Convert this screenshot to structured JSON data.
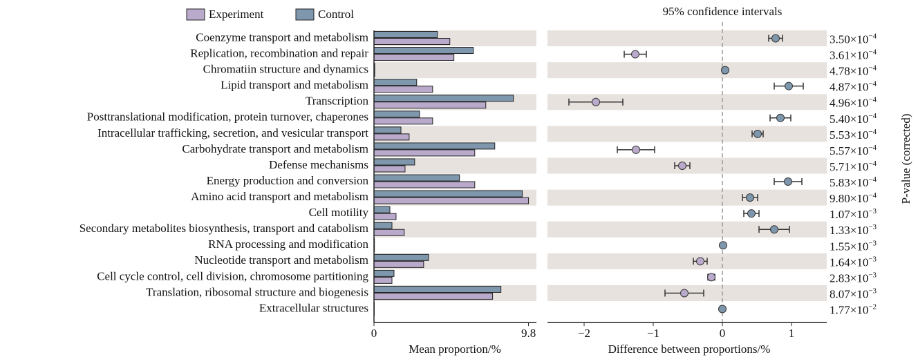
{
  "chart_data": [
    {
      "type": "bar",
      "orientation": "horizontal",
      "categories": [
        "Coenzyme transport and metabolism",
        "Replication, recombination and repair",
        "Chromatiin structure and dynamics",
        "Lipid transport and metabolism",
        "Transcription",
        "Posttranslational modification, protein turnover, chaperones",
        "Intracellular trafficking, secretion, and vesicular transport",
        "Carbohydrate transport and metabolism",
        "Defense mechanisms",
        "Energy production and conversion",
        "Amino acid transport and metabolism",
        "Cell motility",
        "Secondary metabolites biosynthesis, transport and catabolism",
        "RNA processing and modification",
        "Nucleotide transport and metabolism",
        "Cell cycle control, cell division, chromosome partitioning",
        "Translation, ribosomal structure and biogenesis",
        "Extracellular structures"
      ],
      "series": [
        {
          "name": "Experiment",
          "color": "#b9aacb",
          "values": [
            4.81,
            5.07,
            0.05,
            3.72,
            7.09,
            3.72,
            2.23,
            6.39,
            1.97,
            6.39,
            9.8,
            1.4,
            1.92,
            0.03,
            3.15,
            1.14,
            7.52,
            0.02
          ]
        },
        {
          "name": "Control",
          "color": "#7f97ad",
          "values": [
            4.02,
            6.3,
            0.05,
            2.71,
            8.84,
            2.89,
            1.71,
            7.66,
            2.58,
            5.42,
            9.4,
            1.01,
            1.14,
            0.03,
            3.46,
            1.27,
            8.05,
            0.02
          ]
        }
      ],
      "xlim": [
        0,
        10.3
      ],
      "xticks": [
        0,
        9.8
      ],
      "xlabel": "Mean proportion/%",
      "stripe_color": "#e7e2dd"
    },
    {
      "type": "errorbar",
      "title": "95% confidence intervals",
      "values": [
        0.77,
        -1.26,
        0.04,
        0.96,
        -1.83,
        0.84,
        0.51,
        -1.25,
        -0.58,
        0.95,
        0.4,
        0.42,
        0.75,
        0.01,
        -0.32,
        -0.16,
        -0.55,
        0.0
      ],
      "errors": [
        0.1,
        0.16,
        0,
        0.21,
        0.39,
        0.15,
        0.08,
        0.27,
        0.11,
        0.2,
        0.11,
        0.11,
        0.22,
        0,
        0.1,
        0.05,
        0.28,
        0
      ],
      "xlim": [
        -2.53,
        1.51
      ],
      "xticks": [
        {
          "value": -2,
          "label": "−2"
        },
        {
          "value": -1,
          "label": "−1"
        },
        0,
        1
      ],
      "xlabel": "Difference between proportions/%",
      "p_values": [
        0.00035,
        0.000361,
        0.000478,
        0.000487,
        0.000496,
        0.00054,
        0.000553,
        0.000557,
        0.000571,
        0.000583,
        0.00098,
        0.00107,
        0.00133,
        0.00155,
        0.00164,
        0.00283,
        0.00807,
        0.0177
      ],
      "p_value_labels": [
        {
          "base": "3.50×10",
          "exp": "−4"
        },
        {
          "base": "3.61×10",
          "exp": "−4"
        },
        {
          "base": "4.78×10",
          "exp": "−4"
        },
        {
          "base": "4.87×10",
          "exp": "−4"
        },
        {
          "base": "4.96×10",
          "exp": "−4"
        },
        {
          "base": "5.40×10",
          "exp": "−4"
        },
        {
          "base": "5.53×10",
          "exp": "−4"
        },
        {
          "base": "5.57×10",
          "exp": "−4"
        },
        {
          "base": "5.71×10",
          "exp": "−4"
        },
        {
          "base": "5.83×10",
          "exp": "−4"
        },
        {
          "base": "9.80×10",
          "exp": "−4"
        },
        {
          "base": "1.07×10",
          "exp": "−3"
        },
        {
          "base": "1.33×10",
          "exp": "−3"
        },
        {
          "base": "1.55×10",
          "exp": "−3"
        },
        {
          "base": "1.64×10",
          "exp": "−3"
        },
        {
          "base": "2.83×10",
          "exp": "−3"
        },
        {
          "base": "8.07×10",
          "exp": "−3"
        },
        {
          "base": "1.77×10",
          "exp": "−2"
        }
      ],
      "y2label": "P-value (corrected)"
    }
  ]
}
